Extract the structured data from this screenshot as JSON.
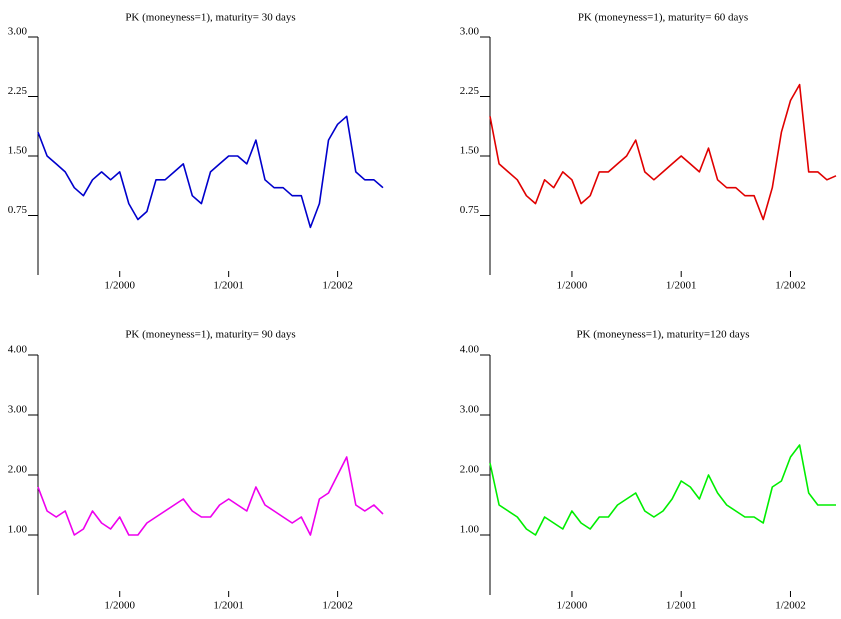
{
  "chart_data": [
    {
      "type": "line",
      "title": "PK (moneyness=1), maturity= 30 days",
      "color": "#0000cc",
      "x": [
        "4/1999",
        "5/1999",
        "6/1999",
        "7/1999",
        "8/1999",
        "9/1999",
        "10/1999",
        "11/1999",
        "12/1999",
        "1/2000",
        "2/2000",
        "3/2000",
        "4/2000",
        "5/2000",
        "6/2000",
        "7/2000",
        "8/2000",
        "9/2000",
        "10/2000",
        "11/2000",
        "12/2000",
        "1/2001",
        "2/2001",
        "3/2001",
        "4/2001",
        "5/2001",
        "6/2001",
        "7/2001",
        "8/2001",
        "9/2001",
        "10/2001",
        "11/2001",
        "12/2001",
        "1/2002",
        "2/2002",
        "3/2002",
        "4/2002",
        "5/2002",
        "6/2002"
      ],
      "values": [
        1.8,
        1.5,
        1.4,
        1.3,
        1.1,
        1.0,
        1.2,
        1.3,
        1.2,
        1.3,
        0.9,
        0.7,
        0.8,
        1.2,
        1.2,
        1.3,
        1.4,
        1.0,
        0.9,
        1.3,
        1.4,
        1.5,
        1.5,
        1.4,
        1.7,
        1.2,
        1.1,
        1.1,
        1.0,
        1.0,
        0.6,
        0.9,
        1.7,
        1.9,
        2.0,
        1.3,
        1.2,
        1.2,
        1.1
      ],
      "xticks": [
        "1/2000",
        "1/2001",
        "1/2002"
      ],
      "ylim": [
        0,
        3
      ],
      "yticks": [
        {
          "value": 0.75,
          "label": "0.75"
        },
        {
          "value": 1.5,
          "label": "1.50"
        },
        {
          "value": 2.25,
          "label": "2.25"
        },
        {
          "value": 3,
          "label": "3.00"
        }
      ]
    },
    {
      "type": "line",
      "title": "PK (moneyness=1), maturity= 60 days",
      "color": "#e00000",
      "x": [
        "4/1999",
        "5/1999",
        "6/1999",
        "7/1999",
        "8/1999",
        "9/1999",
        "10/1999",
        "11/1999",
        "12/1999",
        "1/2000",
        "2/2000",
        "3/2000",
        "4/2000",
        "5/2000",
        "6/2000",
        "7/2000",
        "8/2000",
        "9/2000",
        "10/2000",
        "11/2000",
        "12/2000",
        "1/2001",
        "2/2001",
        "3/2001",
        "4/2001",
        "5/2001",
        "6/2001",
        "7/2001",
        "8/2001",
        "9/2001",
        "10/2001",
        "11/2001",
        "12/2001",
        "1/2002",
        "2/2002",
        "3/2002",
        "4/2002",
        "5/2002",
        "6/2002"
      ],
      "values": [
        2.0,
        1.4,
        1.3,
        1.2,
        1.0,
        0.9,
        1.2,
        1.1,
        1.3,
        1.2,
        0.9,
        1.0,
        1.3,
        1.3,
        1.4,
        1.5,
        1.7,
        1.3,
        1.2,
        1.3,
        1.4,
        1.5,
        1.4,
        1.3,
        1.6,
        1.2,
        1.1,
        1.1,
        1.0,
        1.0,
        0.7,
        1.1,
        1.8,
        2.2,
        2.4,
        1.3,
        1.3,
        1.2,
        1.25
      ],
      "xticks": [
        "1/2000",
        "1/2001",
        "1/2002"
      ],
      "ylim": [
        0,
        3
      ],
      "yticks": [
        {
          "value": 0.75,
          "label": "0.75"
        },
        {
          "value": 1.5,
          "label": "1.50"
        },
        {
          "value": 2.25,
          "label": "2.25"
        },
        {
          "value": 3,
          "label": "3.00"
        }
      ]
    },
    {
      "type": "line",
      "title": "PK (moneyness=1), maturity= 90 days",
      "color": "#ee00ee",
      "x": [
        "4/1999",
        "5/1999",
        "6/1999",
        "7/1999",
        "8/1999",
        "9/1999",
        "10/1999",
        "11/1999",
        "12/1999",
        "1/2000",
        "2/2000",
        "3/2000",
        "4/2000",
        "5/2000",
        "6/2000",
        "7/2000",
        "8/2000",
        "9/2000",
        "10/2000",
        "11/2000",
        "12/2000",
        "1/2001",
        "2/2001",
        "3/2001",
        "4/2001",
        "5/2001",
        "6/2001",
        "7/2001",
        "8/2001",
        "9/2001",
        "10/2001",
        "11/2001",
        "12/2001",
        "1/2002",
        "2/2002",
        "3/2002",
        "4/2002",
        "5/2002",
        "6/2002"
      ],
      "values": [
        1.8,
        1.4,
        1.3,
        1.4,
        1.0,
        1.1,
        1.4,
        1.2,
        1.1,
        1.3,
        1.0,
        1.0,
        1.2,
        1.3,
        1.4,
        1.5,
        1.6,
        1.4,
        1.3,
        1.3,
        1.5,
        1.6,
        1.5,
        1.4,
        1.8,
        1.5,
        1.4,
        1.3,
        1.2,
        1.3,
        1.0,
        1.6,
        1.7,
        2.0,
        2.3,
        1.5,
        1.4,
        1.5,
        1.35
      ],
      "xticks": [
        "1/2000",
        "1/2001",
        "1/2002"
      ],
      "ylim": [
        0,
        4
      ],
      "yticks": [
        {
          "value": 1,
          "label": "1.00"
        },
        {
          "value": 2,
          "label": "2.00"
        },
        {
          "value": 3,
          "label": "3.00"
        },
        {
          "value": 4,
          "label": "4.00"
        }
      ]
    },
    {
      "type": "line",
      "title": "PK (moneyness=1), maturity=120 days",
      "color": "#00ee00",
      "x": [
        "4/1999",
        "5/1999",
        "6/1999",
        "7/1999",
        "8/1999",
        "9/1999",
        "10/1999",
        "11/1999",
        "12/1999",
        "1/2000",
        "2/2000",
        "3/2000",
        "4/2000",
        "5/2000",
        "6/2000",
        "7/2000",
        "8/2000",
        "9/2000",
        "10/2000",
        "11/2000",
        "12/2000",
        "1/2001",
        "2/2001",
        "3/2001",
        "4/2001",
        "5/2001",
        "6/2001",
        "7/2001",
        "8/2001",
        "9/2001",
        "10/2001",
        "11/2001",
        "12/2001",
        "1/2002",
        "2/2002",
        "3/2002",
        "4/2002",
        "5/2002",
        "6/2002"
      ],
      "values": [
        2.2,
        1.5,
        1.4,
        1.3,
        1.1,
        1.0,
        1.3,
        1.2,
        1.1,
        1.4,
        1.2,
        1.1,
        1.3,
        1.3,
        1.5,
        1.6,
        1.7,
        1.4,
        1.3,
        1.4,
        1.6,
        1.9,
        1.8,
        1.6,
        2.0,
        1.7,
        1.5,
        1.4,
        1.3,
        1.3,
        1.2,
        1.8,
        1.9,
        2.3,
        2.5,
        1.7,
        1.5,
        1.5,
        1.5
      ],
      "xticks": [
        "1/2000",
        "1/2001",
        "1/2002"
      ],
      "ylim": [
        0,
        4
      ],
      "yticks": [
        {
          "value": 1,
          "label": "1.00"
        },
        {
          "value": 2,
          "label": "2.00"
        },
        {
          "value": 3,
          "label": "3.00"
        },
        {
          "value": 4,
          "label": "4.00"
        }
      ]
    }
  ]
}
